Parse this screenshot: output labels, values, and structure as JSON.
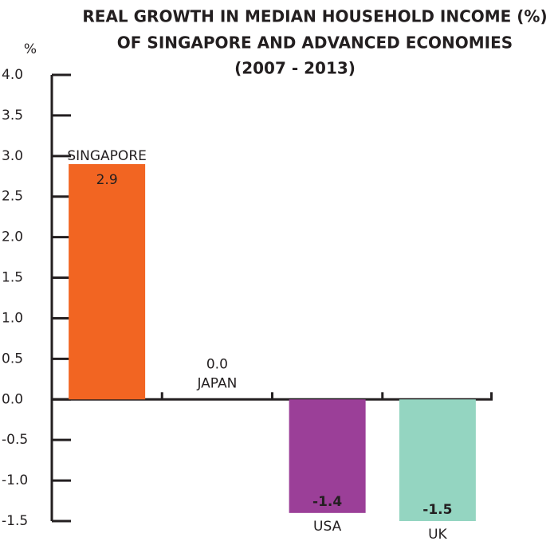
{
  "chart_data": {
    "type": "bar",
    "title": [
      "REAL GROWTH IN MEDIAN HOUSEHOLD INCOME (%)",
      "OF SINGAPORE AND ADVANCED ECONOMIES",
      "(2007 - 2013)"
    ],
    "y_label": "%",
    "categories": [
      "SINGAPORE",
      "JAPAN",
      "USA",
      "UK"
    ],
    "values": [
      2.9,
      0,
      -1.4,
      -1.5
    ],
    "value_labels": [
      "2.9",
      "0.0",
      "-1.4",
      "-1.5"
    ],
    "colors": [
      "#f26522",
      "#c8c8c8",
      "#9b3f98",
      "#94d5c1"
    ],
    "ylim": [
      -1.5,
      4
    ],
    "yticks": [
      {
        "value": 4,
        "label": "4.0"
      },
      3.5,
      {
        "value": 3,
        "label": "3.0"
      },
      2.5,
      {
        "value": 2,
        "label": "2.0"
      },
      1.5,
      {
        "value": 1,
        "label": "1.0"
      },
      0.5,
      {
        "value": 0,
        "label": "0.0"
      },
      -0.5,
      {
        "value": -1,
        "label": "-1.0"
      },
      -1.5
    ]
  }
}
